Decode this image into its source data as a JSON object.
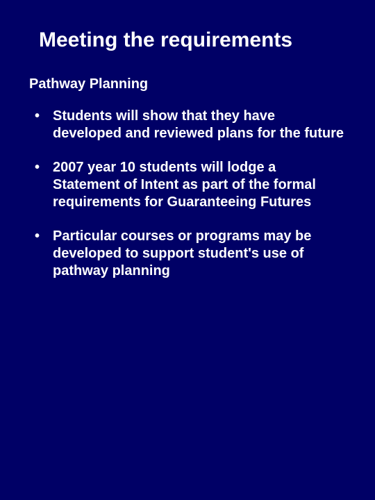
{
  "slide": {
    "background_color": "#000066",
    "text_color": "#ffffff",
    "title": "Meeting the requirements",
    "title_fontsize": 30,
    "subtitle": "Pathway Planning",
    "subtitle_fontsize": 20,
    "bullet_fontsize": 20,
    "bullets": [
      "Students will show that they have developed and reviewed plans for the future",
      "2007 year 10 students will lodge a Statement of Intent as part of the formal requirements for Guaranteeing Futures",
      "Particular courses or programs may be developed to support student's use of pathway planning"
    ]
  }
}
